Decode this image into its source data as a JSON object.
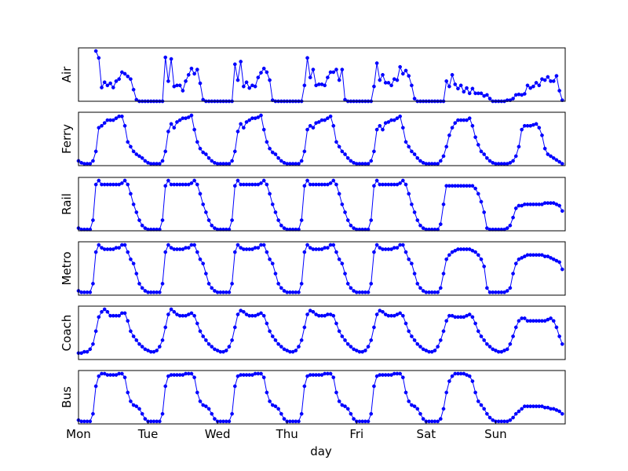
{
  "chart_data": {
    "type": "line",
    "xlabel": "day",
    "x_tick_labels": [
      "Mon",
      "Tue",
      "Wed",
      "Thu",
      "Fri",
      "Sat",
      "Sun"
    ],
    "x_range_days": [
      0,
      7
    ],
    "samples_per_day": 24,
    "line_color": "#0000ff",
    "marker": "dot",
    "grid": false,
    "y_ticks_shown": false,
    "series": [
      {
        "name": "Air",
        "values": [
          null,
          null,
          null,
          null,
          null,
          null,
          0.95,
          0.82,
          0.26,
          0.36,
          0.3,
          0.34,
          0.26,
          0.38,
          0.42,
          0.55,
          0.52,
          0.47,
          0.42,
          0.22,
          0.03,
          0.0,
          0.0,
          0.0,
          0.0,
          0.0,
          0.0,
          0.0,
          0.0,
          0.0,
          0.83,
          0.38,
          0.8,
          0.28,
          0.3,
          0.3,
          0.2,
          0.38,
          0.5,
          0.62,
          0.52,
          0.6,
          0.34,
          0.03,
          0.0,
          0.0,
          0.0,
          0.0,
          0.0,
          0.0,
          0.0,
          0.0,
          0.0,
          0.0,
          0.7,
          0.4,
          0.75,
          0.28,
          0.36,
          0.25,
          0.3,
          0.28,
          0.45,
          0.54,
          0.62,
          0.55,
          0.4,
          0.02,
          0.0,
          0.0,
          0.0,
          0.0,
          0.0,
          0.0,
          0.0,
          0.0,
          0.0,
          0.0,
          0.3,
          0.82,
          0.45,
          0.6,
          0.3,
          0.32,
          0.32,
          0.3,
          0.45,
          0.55,
          0.55,
          0.6,
          0.4,
          0.6,
          0.03,
          0.0,
          0.0,
          0.0,
          0.0,
          0.0,
          0.0,
          0.0,
          0.0,
          0.0,
          0.28,
          0.72,
          0.4,
          0.5,
          0.35,
          0.35,
          0.3,
          0.42,
          0.4,
          0.65,
          0.52,
          0.58,
          0.48,
          0.3,
          0.05,
          0.0,
          0.0,
          0.0,
          0.0,
          0.0,
          0.0,
          0.0,
          0.0,
          0.0,
          0.0,
          0.38,
          0.28,
          0.5,
          0.32,
          0.24,
          0.3,
          0.18,
          0.25,
          0.15,
          0.24,
          0.15,
          0.15,
          0.15,
          0.1,
          0.12,
          0.05,
          0.0,
          0.0,
          0.0,
          0.0,
          0.0,
          0.02,
          0.02,
          0.05,
          0.12,
          0.13,
          0.12,
          0.14,
          0.3,
          0.25,
          0.28,
          0.35,
          0.3,
          0.42,
          0.4,
          0.46,
          0.38,
          0.38,
          0.48,
          0.2,
          0.02
        ]
      },
      {
        "name": "Ferry",
        "values": [
          0.05,
          0.03,
          0.02,
          0.02,
          0.02,
          0.05,
          0.15,
          0.4,
          0.42,
          0.45,
          0.48,
          0.48,
          0.48,
          0.5,
          0.52,
          0.52,
          0.42,
          0.25,
          0.2,
          0.15,
          0.12,
          0.1,
          0.08,
          0.05,
          0.03,
          0.02,
          0.02,
          0.02,
          0.02,
          0.05,
          0.15,
          0.36,
          0.44,
          0.4,
          0.46,
          0.48,
          0.5,
          0.5,
          0.51,
          0.53,
          0.38,
          0.25,
          0.18,
          0.14,
          0.12,
          0.08,
          0.05,
          0.03,
          0.02,
          0.02,
          0.02,
          0.02,
          0.02,
          0.05,
          0.15,
          0.36,
          0.44,
          0.4,
          0.46,
          0.48,
          0.5,
          0.5,
          0.51,
          0.53,
          0.38,
          0.25,
          0.18,
          0.14,
          0.12,
          0.08,
          0.05,
          0.03,
          0.02,
          0.02,
          0.02,
          0.02,
          0.02,
          0.05,
          0.15,
          0.38,
          0.42,
          0.4,
          0.45,
          0.46,
          0.48,
          0.48,
          0.5,
          0.52,
          0.42,
          0.25,
          0.2,
          0.15,
          0.12,
          0.08,
          0.05,
          0.03,
          0.02,
          0.02,
          0.02,
          0.02,
          0.02,
          0.05,
          0.15,
          0.38,
          0.42,
          0.38,
          0.45,
          0.46,
          0.48,
          0.48,
          0.5,
          0.52,
          0.4,
          0.25,
          0.2,
          0.15,
          0.12,
          0.08,
          0.05,
          0.03,
          0.02,
          0.02,
          0.02,
          0.02,
          0.02,
          0.05,
          0.1,
          0.2,
          0.32,
          0.4,
          0.45,
          0.48,
          0.48,
          0.48,
          0.48,
          0.5,
          0.42,
          0.3,
          0.22,
          0.15,
          0.12,
          0.08,
          0.05,
          0.03,
          0.02,
          0.02,
          0.02,
          0.02,
          0.02,
          0.03,
          0.05,
          0.1,
          0.2,
          0.38,
          0.42,
          0.42,
          0.42,
          0.43,
          0.44,
          0.4,
          0.32,
          0.18,
          0.12,
          0.1,
          0.08,
          0.06,
          0.04,
          0.02
        ]
      },
      {
        "name": "Rail",
        "values": [
          0.02,
          0.01,
          0.01,
          0.01,
          0.01,
          0.08,
          0.35,
          0.38,
          0.35,
          0.35,
          0.35,
          0.35,
          0.35,
          0.35,
          0.35,
          0.36,
          0.38,
          0.35,
          0.28,
          0.2,
          0.14,
          0.08,
          0.04,
          0.02,
          0.01,
          0.01,
          0.01,
          0.01,
          0.01,
          0.08,
          0.34,
          0.38,
          0.35,
          0.35,
          0.35,
          0.35,
          0.35,
          0.35,
          0.35,
          0.36,
          0.38,
          0.35,
          0.28,
          0.2,
          0.14,
          0.08,
          0.04,
          0.02,
          0.01,
          0.01,
          0.01,
          0.01,
          0.01,
          0.08,
          0.34,
          0.38,
          0.35,
          0.35,
          0.35,
          0.35,
          0.35,
          0.35,
          0.35,
          0.36,
          0.38,
          0.35,
          0.28,
          0.2,
          0.14,
          0.08,
          0.04,
          0.02,
          0.01,
          0.01,
          0.01,
          0.01,
          0.01,
          0.08,
          0.34,
          0.38,
          0.35,
          0.35,
          0.35,
          0.35,
          0.35,
          0.35,
          0.35,
          0.36,
          0.38,
          0.35,
          0.28,
          0.2,
          0.14,
          0.08,
          0.04,
          0.02,
          0.01,
          0.01,
          0.01,
          0.01,
          0.01,
          0.08,
          0.34,
          0.38,
          0.35,
          0.35,
          0.35,
          0.35,
          0.35,
          0.35,
          0.35,
          0.36,
          0.38,
          0.35,
          0.28,
          0.2,
          0.14,
          0.08,
          0.04,
          0.02,
          0.01,
          0.01,
          0.01,
          0.01,
          0.01,
          0.05,
          0.2,
          0.34,
          0.34,
          0.34,
          0.34,
          0.34,
          0.34,
          0.34,
          0.34,
          0.34,
          0.34,
          0.32,
          0.28,
          0.22,
          0.14,
          0.02,
          0.01,
          0.01,
          0.01,
          0.01,
          0.01,
          0.01,
          0.02,
          0.04,
          0.1,
          0.17,
          0.19,
          0.19,
          0.2,
          0.2,
          0.2,
          0.2,
          0.2,
          0.2,
          0.2,
          0.21,
          0.21,
          0.21,
          0.21,
          0.2,
          0.19,
          0.15
        ]
      },
      {
        "name": "Metro",
        "values": [
          0.03,
          0.02,
          0.02,
          0.02,
          0.02,
          0.08,
          0.3,
          0.35,
          0.33,
          0.32,
          0.32,
          0.32,
          0.32,
          0.33,
          0.33,
          0.35,
          0.35,
          0.3,
          0.25,
          0.22,
          0.15,
          0.08,
          0.05,
          0.03,
          0.02,
          0.02,
          0.02,
          0.02,
          0.02,
          0.08,
          0.3,
          0.35,
          0.33,
          0.32,
          0.32,
          0.32,
          0.32,
          0.33,
          0.33,
          0.35,
          0.35,
          0.3,
          0.25,
          0.22,
          0.15,
          0.08,
          0.05,
          0.03,
          0.02,
          0.02,
          0.02,
          0.02,
          0.02,
          0.08,
          0.3,
          0.35,
          0.33,
          0.32,
          0.32,
          0.32,
          0.32,
          0.33,
          0.33,
          0.35,
          0.35,
          0.3,
          0.25,
          0.22,
          0.15,
          0.08,
          0.05,
          0.03,
          0.02,
          0.02,
          0.02,
          0.02,
          0.02,
          0.08,
          0.3,
          0.35,
          0.33,
          0.32,
          0.32,
          0.32,
          0.32,
          0.33,
          0.33,
          0.35,
          0.35,
          0.3,
          0.25,
          0.22,
          0.15,
          0.08,
          0.05,
          0.03,
          0.02,
          0.02,
          0.02,
          0.02,
          0.02,
          0.08,
          0.3,
          0.35,
          0.33,
          0.32,
          0.32,
          0.32,
          0.32,
          0.33,
          0.33,
          0.35,
          0.35,
          0.3,
          0.25,
          0.22,
          0.15,
          0.08,
          0.05,
          0.03,
          0.02,
          0.02,
          0.02,
          0.02,
          0.02,
          0.05,
          0.15,
          0.25,
          0.28,
          0.3,
          0.31,
          0.32,
          0.32,
          0.32,
          0.32,
          0.32,
          0.31,
          0.3,
          0.28,
          0.25,
          0.2,
          0.05,
          0.02,
          0.02,
          0.02,
          0.02,
          0.02,
          0.02,
          0.03,
          0.05,
          0.15,
          0.22,
          0.25,
          0.26,
          0.27,
          0.28,
          0.28,
          0.28,
          0.28,
          0.28,
          0.28,
          0.27,
          0.27,
          0.26,
          0.25,
          0.24,
          0.23,
          0.18
        ]
      },
      {
        "name": "Coach",
        "values": [
          0.05,
          0.05,
          0.06,
          0.06,
          0.08,
          0.12,
          0.22,
          0.33,
          0.37,
          0.39,
          0.37,
          0.34,
          0.34,
          0.34,
          0.34,
          0.36,
          0.36,
          0.3,
          0.22,
          0.18,
          0.15,
          0.12,
          0.1,
          0.08,
          0.07,
          0.06,
          0.06,
          0.07,
          0.1,
          0.15,
          0.25,
          0.35,
          0.39,
          0.37,
          0.35,
          0.34,
          0.34,
          0.34,
          0.35,
          0.36,
          0.34,
          0.28,
          0.22,
          0.18,
          0.15,
          0.12,
          0.1,
          0.08,
          0.07,
          0.06,
          0.06,
          0.07,
          0.1,
          0.15,
          0.25,
          0.35,
          0.38,
          0.37,
          0.35,
          0.34,
          0.34,
          0.34,
          0.35,
          0.36,
          0.34,
          0.28,
          0.22,
          0.18,
          0.15,
          0.12,
          0.1,
          0.08,
          0.07,
          0.06,
          0.06,
          0.07,
          0.1,
          0.15,
          0.25,
          0.35,
          0.38,
          0.37,
          0.35,
          0.34,
          0.34,
          0.34,
          0.35,
          0.35,
          0.34,
          0.28,
          0.22,
          0.18,
          0.15,
          0.12,
          0.1,
          0.08,
          0.07,
          0.06,
          0.06,
          0.07,
          0.1,
          0.15,
          0.25,
          0.35,
          0.38,
          0.37,
          0.35,
          0.34,
          0.34,
          0.34,
          0.35,
          0.36,
          0.34,
          0.28,
          0.22,
          0.18,
          0.15,
          0.12,
          0.1,
          0.08,
          0.07,
          0.06,
          0.06,
          0.07,
          0.1,
          0.15,
          0.22,
          0.3,
          0.34,
          0.34,
          0.33,
          0.33,
          0.33,
          0.33,
          0.34,
          0.35,
          0.33,
          0.28,
          0.22,
          0.18,
          0.15,
          0.12,
          0.1,
          0.08,
          0.07,
          0.06,
          0.06,
          0.07,
          0.08,
          0.12,
          0.18,
          0.25,
          0.3,
          0.32,
          0.32,
          0.3,
          0.3,
          0.3,
          0.3,
          0.3,
          0.3,
          0.3,
          0.31,
          0.32,
          0.3,
          0.25,
          0.18,
          0.12
        ]
      },
      {
        "name": "Bus",
        "values": [
          0.03,
          0.02,
          0.02,
          0.02,
          0.02,
          0.08,
          0.3,
          0.38,
          0.4,
          0.4,
          0.39,
          0.39,
          0.39,
          0.39,
          0.4,
          0.4,
          0.37,
          0.25,
          0.18,
          0.15,
          0.14,
          0.12,
          0.08,
          0.04,
          0.02,
          0.02,
          0.02,
          0.02,
          0.02,
          0.08,
          0.3,
          0.38,
          0.39,
          0.39,
          0.39,
          0.39,
          0.39,
          0.4,
          0.4,
          0.4,
          0.37,
          0.25,
          0.18,
          0.15,
          0.14,
          0.12,
          0.08,
          0.04,
          0.02,
          0.02,
          0.02,
          0.02,
          0.02,
          0.08,
          0.3,
          0.38,
          0.39,
          0.39,
          0.39,
          0.39,
          0.39,
          0.4,
          0.4,
          0.4,
          0.37,
          0.25,
          0.18,
          0.15,
          0.14,
          0.12,
          0.08,
          0.04,
          0.02,
          0.02,
          0.02,
          0.02,
          0.02,
          0.08,
          0.3,
          0.38,
          0.39,
          0.39,
          0.39,
          0.39,
          0.39,
          0.4,
          0.4,
          0.4,
          0.37,
          0.25,
          0.18,
          0.15,
          0.14,
          0.12,
          0.08,
          0.04,
          0.02,
          0.02,
          0.02,
          0.02,
          0.02,
          0.08,
          0.3,
          0.38,
          0.39,
          0.39,
          0.39,
          0.39,
          0.39,
          0.4,
          0.4,
          0.4,
          0.37,
          0.25,
          0.18,
          0.15,
          0.14,
          0.12,
          0.08,
          0.04,
          0.02,
          0.02,
          0.02,
          0.02,
          0.02,
          0.04,
          0.12,
          0.25,
          0.34,
          0.38,
          0.4,
          0.4,
          0.4,
          0.4,
          0.39,
          0.38,
          0.34,
          0.25,
          0.18,
          0.15,
          0.12,
          0.08,
          0.05,
          0.03,
          0.02,
          0.02,
          0.02,
          0.02,
          0.02,
          0.03,
          0.05,
          0.08,
          0.1,
          0.12,
          0.14,
          0.14,
          0.14,
          0.14,
          0.14,
          0.14,
          0.14,
          0.13,
          0.13,
          0.12,
          0.12,
          0.11,
          0.1,
          0.08
        ]
      }
    ]
  }
}
